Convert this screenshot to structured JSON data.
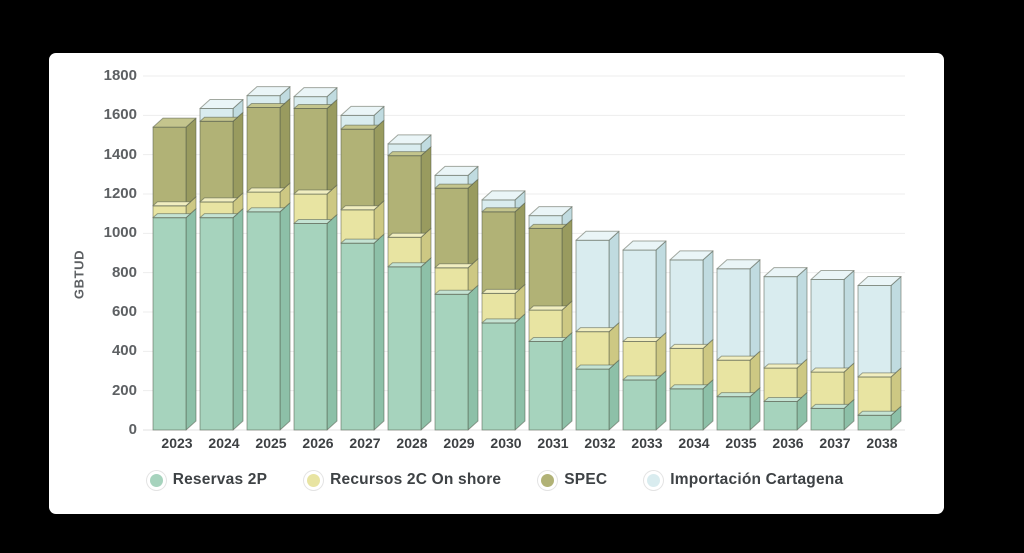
{
  "page": {
    "background": "#000000",
    "card_background": "#ffffff"
  },
  "chart_data": {
    "type": "bar",
    "stacked": true,
    "style": "3d-columns",
    "title": "",
    "xlabel": "",
    "ylabel": "GBTUD",
    "ylim": [
      0,
      1800
    ],
    "y_ticks": [
      "0",
      "200",
      "400",
      "600",
      "800",
      "1000",
      "1200",
      "1400",
      "1600",
      "1800"
    ],
    "grid": "horizontal",
    "gridline_color": "#ededed",
    "baseline_color": "#e2e2e2",
    "bar_outline_color": "#4e5546",
    "axis_text_color": "#5d6063",
    "legend_position": "bottom",
    "categories": [
      "2023",
      "2024",
      "2025",
      "2026",
      "2027",
      "2028",
      "2029",
      "2030",
      "2031",
      "2032",
      "2033",
      "2034",
      "2035",
      "2036",
      "2037",
      "2038"
    ],
    "series": [
      {
        "name": "Reservas 2P",
        "color": "#a6d3bd",
        "side_color": "#8dc0a8",
        "top_color": "#c4e3d3",
        "values": [
          1080,
          1080,
          1110,
          1050,
          950,
          830,
          690,
          545,
          450,
          310,
          255,
          210,
          170,
          145,
          110,
          75
        ]
      },
      {
        "name": "Recursos 2C On shore",
        "color": "#e8e4a2",
        "side_color": "#cdc883",
        "top_color": "#f1eec0",
        "values": [
          60,
          80,
          100,
          150,
          170,
          150,
          135,
          150,
          160,
          190,
          195,
          205,
          185,
          170,
          185,
          195
        ]
      },
      {
        "name": "SPEC",
        "color": "#b1b276",
        "side_color": "#999b5f",
        "top_color": "#c4c58d",
        "values": [
          400,
          410,
          430,
          435,
          410,
          415,
          405,
          415,
          415,
          0,
          0,
          0,
          0,
          0,
          0,
          0
        ]
      },
      {
        "name": "Importación Cartagena",
        "color": "#d9ecef",
        "side_color": "#c0dbe0",
        "top_color": "#eaf5f7",
        "values": [
          0,
          65,
          60,
          60,
          70,
          60,
          65,
          60,
          65,
          465,
          465,
          450,
          465,
          465,
          470,
          465
        ]
      }
    ]
  }
}
